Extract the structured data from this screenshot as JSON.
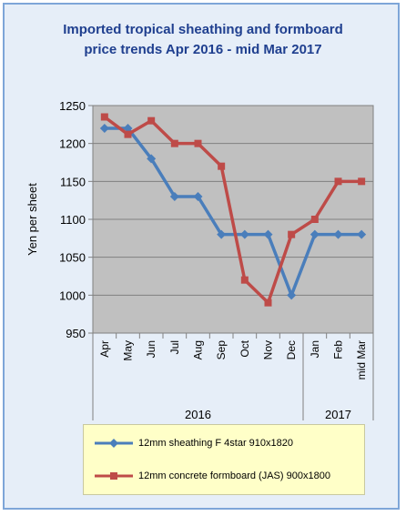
{
  "chart_data": {
    "type": "line",
    "title_line1": "Imported tropical sheathing and formboard",
    "title_line2": "price trends Apr 2016 - mid Mar 2017",
    "ylabel": "Yen per sheet",
    "xlabel": "",
    "ylim": [
      950,
      1250
    ],
    "yticks": [
      950,
      1000,
      1050,
      1100,
      1150,
      1200,
      1250
    ],
    "categories": [
      "Apr",
      "May",
      "Jun",
      "Jul",
      "Aug",
      "Sep",
      "Oct",
      "Nov",
      "Dec",
      "Jan",
      "Feb",
      "mid Mar"
    ],
    "year_groups": [
      {
        "label": "2016",
        "start": 0,
        "end": 8
      },
      {
        "label": "2017",
        "start": 9,
        "end": 11
      }
    ],
    "grid": true,
    "legend_position": "bottom",
    "series": [
      {
        "name": "12mm sheathing F 4star 910x1820",
        "color": "#4a7ebb",
        "marker": "diamond",
        "values": [
          1220,
          1220,
          1180,
          1130,
          1130,
          1080,
          1080,
          1080,
          1000,
          1080,
          1080,
          1080
        ]
      },
      {
        "name": "12mm concrete formboard (JAS) 900x1800",
        "color": "#be4b48",
        "marker": "square",
        "values": [
          1235,
          1212,
          1230,
          1200,
          1200,
          1170,
          1020,
          990,
          1080,
          1100,
          1150,
          1150
        ]
      }
    ],
    "plot_background": "#c0c0c0",
    "gridline_color": "#808080"
  }
}
